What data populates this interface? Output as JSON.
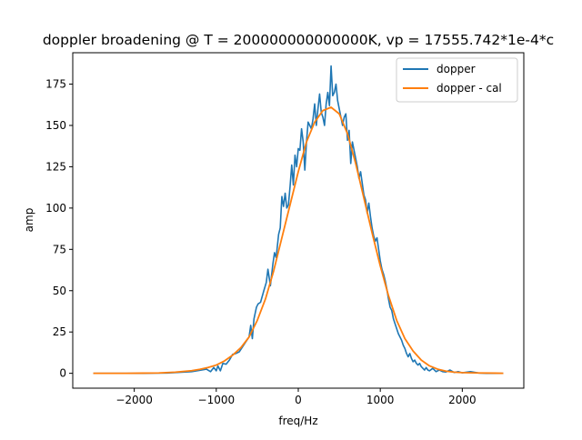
{
  "chart_data": {
    "type": "line",
    "title": "doppler broadening @ T = 200000000000000K, vp = 17555.742*1e-4*c",
    "xlabel": "freq/Hz",
    "ylabel": "amp",
    "xlim": [
      -2750,
      2750
    ],
    "ylim": [
      -9,
      194
    ],
    "x_ticks": [
      -2000,
      -1000,
      0,
      1000,
      2000
    ],
    "y_ticks": [
      0,
      25,
      50,
      75,
      100,
      125,
      150,
      175
    ],
    "x_tick_labels": [
      "−2000",
      "−1000",
      "0",
      "1000",
      "2000"
    ],
    "y_tick_labels": [
      "0",
      "25",
      "50",
      "75",
      "100",
      "125",
      "150",
      "175"
    ],
    "grid": false,
    "legend_position": "top-right",
    "series": [
      {
        "name": "dopper",
        "color": "#1f77b4",
        "points": [
          [
            -2500,
            0.0
          ],
          [
            -2300,
            0.0
          ],
          [
            -2100,
            0.0
          ],
          [
            -1900,
            0.0
          ],
          [
            -1760,
            0.1
          ],
          [
            -1600,
            0.2
          ],
          [
            -1450,
            0.6
          ],
          [
            -1300,
            1.0
          ],
          [
            -1200,
            1.8
          ],
          [
            -1120,
            2.5
          ],
          [
            -1070,
            1.0
          ],
          [
            -1030,
            3.5
          ],
          [
            -1000,
            1.5
          ],
          [
            -980,
            4.5
          ],
          [
            -950,
            1.5
          ],
          [
            -920,
            6.0
          ],
          [
            -880,
            5.5
          ],
          [
            -840,
            8.0
          ],
          [
            -800,
            11.5
          ],
          [
            -760,
            12.0
          ],
          [
            -720,
            13.0
          ],
          [
            -680,
            16.0
          ],
          [
            -640,
            19.0
          ],
          [
            -600,
            22.0
          ],
          [
            -580,
            29.0
          ],
          [
            -560,
            21.0
          ],
          [
            -540,
            33.0
          ],
          [
            -510,
            40.0
          ],
          [
            -490,
            42.0
          ],
          [
            -460,
            43.0
          ],
          [
            -420,
            50.0
          ],
          [
            -390,
            55.0
          ],
          [
            -370,
            63.0
          ],
          [
            -340,
            53.0
          ],
          [
            -310,
            66.0
          ],
          [
            -290,
            73.0
          ],
          [
            -270,
            70.0
          ],
          [
            -240,
            84.0
          ],
          [
            -220,
            88.0
          ],
          [
            -200,
            107.0
          ],
          [
            -180,
            101.0
          ],
          [
            -160,
            109.0
          ],
          [
            -140,
            100.0
          ],
          [
            -120,
            102.0
          ],
          [
            -100,
            113.0
          ],
          [
            -80,
            126.0
          ],
          [
            -60,
            114.0
          ],
          [
            -40,
            132.0
          ],
          [
            -20,
            125.0
          ],
          [
            0,
            136.0
          ],
          [
            20,
            135.0
          ],
          [
            40,
            148.0
          ],
          [
            60,
            140.0
          ],
          [
            80,
            123.0
          ],
          [
            100,
            140.0
          ],
          [
            120,
            152.0
          ],
          [
            140,
            150.0
          ],
          [
            160,
            148.0
          ],
          [
            180,
            154.0
          ],
          [
            200,
            163.0
          ],
          [
            220,
            150.0
          ],
          [
            240,
            160.0
          ],
          [
            260,
            169.0
          ],
          [
            280,
            158.0
          ],
          [
            300,
            155.0
          ],
          [
            320,
            150.0
          ],
          [
            340,
            163.0
          ],
          [
            360,
            170.0
          ],
          [
            380,
            162.0
          ],
          [
            400,
            186.0
          ],
          [
            420,
            168.0
          ],
          [
            440,
            170.0
          ],
          [
            460,
            175.0
          ],
          [
            480,
            165.0
          ],
          [
            500,
            160.0
          ],
          [
            520,
            155.0
          ],
          [
            540,
            150.0
          ],
          [
            560,
            155.0
          ],
          [
            580,
            157.0
          ],
          [
            600,
            141.0
          ],
          [
            620,
            147.0
          ],
          [
            640,
            127.0
          ],
          [
            660,
            140.0
          ],
          [
            680,
            135.0
          ],
          [
            700,
            130.0
          ],
          [
            720,
            125.0
          ],
          [
            740,
            118.0
          ],
          [
            760,
            122.0
          ],
          [
            780,
            115.0
          ],
          [
            800,
            108.0
          ],
          [
            820,
            105.0
          ],
          [
            840,
            97.0
          ],
          [
            860,
            103.0
          ],
          [
            880,
            95.0
          ],
          [
            900,
            88.0
          ],
          [
            920,
            83.0
          ],
          [
            940,
            80.0
          ],
          [
            960,
            82.0
          ],
          [
            980,
            75.0
          ],
          [
            1000,
            68.0
          ],
          [
            1020,
            63.0
          ],
          [
            1040,
            60.0
          ],
          [
            1060,
            56.0
          ],
          [
            1080,
            51.0
          ],
          [
            1100,
            45.0
          ],
          [
            1120,
            40.0
          ],
          [
            1140,
            38.0
          ],
          [
            1160,
            33.0
          ],
          [
            1180,
            30.0
          ],
          [
            1200,
            27.0
          ],
          [
            1220,
            24.0
          ],
          [
            1240,
            22.0
          ],
          [
            1260,
            20.0
          ],
          [
            1280,
            17.0
          ],
          [
            1300,
            15.0
          ],
          [
            1320,
            12.0
          ],
          [
            1340,
            10.0
          ],
          [
            1360,
            12.0
          ],
          [
            1380,
            9.0
          ],
          [
            1400,
            7.0
          ],
          [
            1420,
            8.0
          ],
          [
            1440,
            6.0
          ],
          [
            1460,
            5.0
          ],
          [
            1480,
            6.0
          ],
          [
            1500,
            4.0
          ],
          [
            1520,
            3.0
          ],
          [
            1540,
            2.0
          ],
          [
            1560,
            3.5
          ],
          [
            1580,
            2.0
          ],
          [
            1600,
            1.5
          ],
          [
            1640,
            3.0
          ],
          [
            1680,
            1.0
          ],
          [
            1720,
            2.0
          ],
          [
            1760,
            1.0
          ],
          [
            1800,
            0.8
          ],
          [
            1850,
            2.0
          ],
          [
            1900,
            0.5
          ],
          [
            1950,
            1.0
          ],
          [
            2000,
            0.3
          ],
          [
            2100,
            1.0
          ],
          [
            2200,
            0.2
          ],
          [
            2300,
            0.0
          ],
          [
            2400,
            0.0
          ],
          [
            2500,
            0.0
          ]
        ]
      },
      {
        "name": "dopper - cal",
        "color": "#ff7f0e",
        "points": [
          [
            -2500,
            0.0
          ],
          [
            -2300,
            0.0
          ],
          [
            -2100,
            0.0
          ],
          [
            -1900,
            0.1
          ],
          [
            -1700,
            0.2
          ],
          [
            -1500,
            0.7
          ],
          [
            -1300,
            1.6
          ],
          [
            -1200,
            2.4
          ],
          [
            -1100,
            3.5
          ],
          [
            -1000,
            5.0
          ],
          [
            -900,
            7.5
          ],
          [
            -800,
            11.0
          ],
          [
            -700,
            15.5
          ],
          [
            -600,
            22.0
          ],
          [
            -500,
            32.0
          ],
          [
            -400,
            45.0
          ],
          [
            -300,
            62.0
          ],
          [
            -200,
            82.0
          ],
          [
            -100,
            102.0
          ],
          [
            0,
            122.0
          ],
          [
            100,
            140.0
          ],
          [
            200,
            152.0
          ],
          [
            300,
            159.0
          ],
          [
            400,
            161.0
          ],
          [
            500,
            157.0
          ],
          [
            600,
            145.0
          ],
          [
            700,
            127.0
          ],
          [
            800,
            106.0
          ],
          [
            900,
            85.0
          ],
          [
            1000,
            65.0
          ],
          [
            1100,
            47.0
          ],
          [
            1200,
            32.0
          ],
          [
            1300,
            21.0
          ],
          [
            1400,
            13.5
          ],
          [
            1500,
            8.0
          ],
          [
            1600,
            4.5
          ],
          [
            1700,
            2.5
          ],
          [
            1800,
            1.3
          ],
          [
            1900,
            0.7
          ],
          [
            2000,
            0.4
          ],
          [
            2200,
            0.2
          ],
          [
            2400,
            0.1
          ],
          [
            2500,
            0.0
          ]
        ]
      }
    ]
  }
}
